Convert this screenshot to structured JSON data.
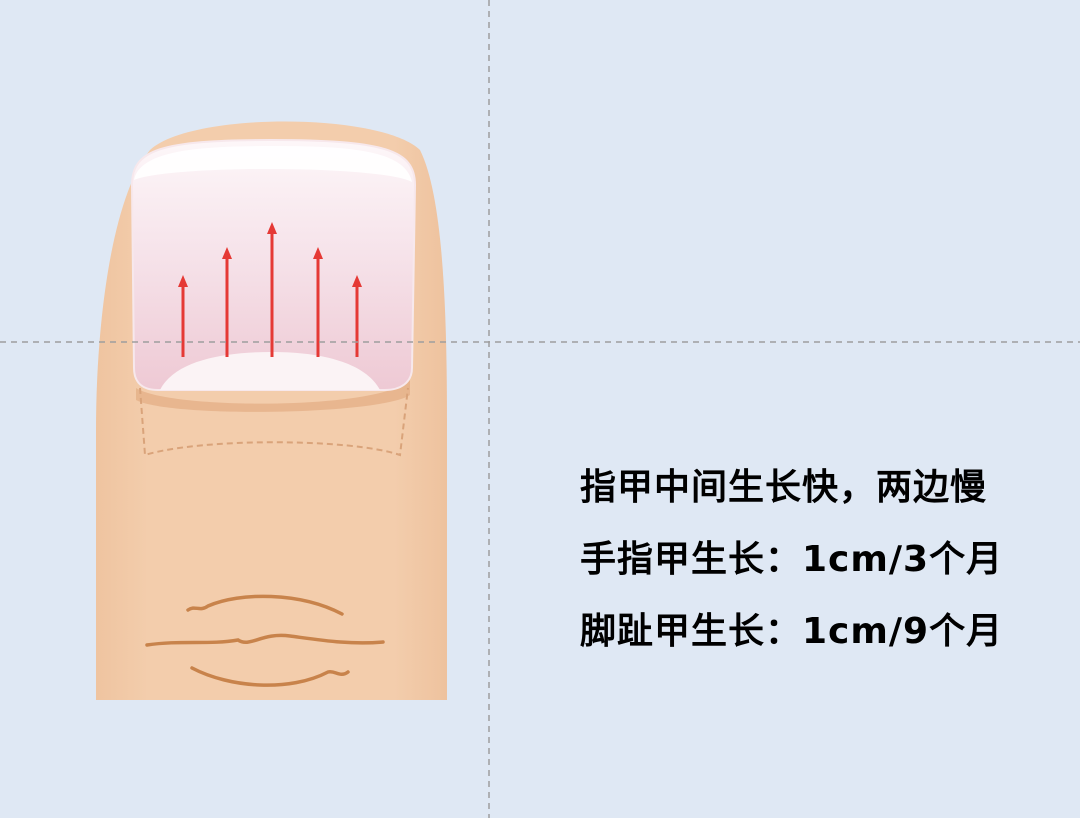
{
  "colors": {
    "background": "#dfe8f4",
    "skin": "#f2ccaa",
    "skin_shadow": "#e7b48a",
    "nail_top": "#fbf3f6",
    "nail_pink": "#f2d4dd",
    "wrinkle": "#c8834b",
    "arrow": "#e53935",
    "guide": "#9e9e9e",
    "text": "#000000"
  },
  "arrows": {
    "direction": "up",
    "count": 5,
    "relative_lengths": [
      0.55,
      0.75,
      1.0,
      0.75,
      0.55
    ]
  },
  "text": {
    "line1": "指甲中间生长快，两边慢",
    "line2": "手指甲生长：1cm/3个月",
    "line3": "脚趾甲生长：1cm/9个月"
  }
}
